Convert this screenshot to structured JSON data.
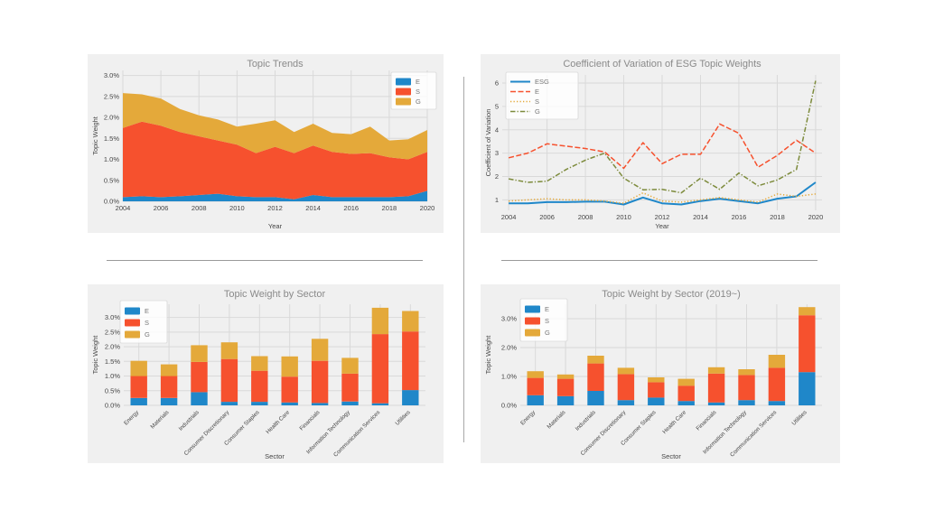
{
  "style": {
    "panel_background": "#f0f0f0",
    "grid_color": "#d9d9d9",
    "tick_color": "#454545",
    "title_color": "#8a8a8a",
    "legend_text_color": "#777777",
    "colors": {
      "e_blue": "#1f87c9",
      "s_red": "#f6512e",
      "g_gold": "#e4a93a",
      "g_olive": "#7d8b3c"
    },
    "dashes": {
      "solid": "",
      "dashed": "6,2.5",
      "dotted": "1.3,2.2",
      "dashdot": "5.5,2,1.3,2"
    }
  },
  "chart_data": [
    {
      "type": "stacked_area",
      "title": "Topic Trends",
      "xlabel": "Year",
      "ylabel": "Topic Weight",
      "x": [
        2004,
        2005,
        2006,
        2007,
        2008,
        2009,
        2010,
        2011,
        2012,
        2013,
        2014,
        2015,
        2016,
        2017,
        2018,
        2019,
        2020
      ],
      "xticks": [
        2004,
        2006,
        2008,
        2010,
        2012,
        2014,
        2016,
        2018,
        2020
      ],
      "ylim": [
        0,
        3.12
      ],
      "ytick_values": [
        0,
        0.5,
        1.0,
        1.5,
        2.0,
        2.5,
        3.0
      ],
      "ytick_labels": [
        "0.0%",
        "0.5%",
        "1.0%",
        "1.5%",
        "2.0%",
        "2.5%",
        "3.0%"
      ],
      "legend_position": "top-right",
      "grid": true,
      "series": [
        {
          "name": "E",
          "color": "#1f87c9",
          "values": [
            0.1,
            0.12,
            0.1,
            0.12,
            0.15,
            0.18,
            0.12,
            0.1,
            0.1,
            0.05,
            0.15,
            0.1,
            0.1,
            0.1,
            0.1,
            0.12,
            0.25
          ]
        },
        {
          "name": "S",
          "color": "#f6512e",
          "values": [
            1.65,
            1.78,
            1.7,
            1.53,
            1.4,
            1.27,
            1.23,
            1.05,
            1.2,
            1.1,
            1.18,
            1.08,
            1.03,
            1.05,
            0.95,
            0.88,
            0.93
          ]
        },
        {
          "name": "G",
          "color": "#e4a93a",
          "values": [
            0.83,
            0.65,
            0.65,
            0.55,
            0.5,
            0.5,
            0.43,
            0.7,
            0.63,
            0.5,
            0.52,
            0.45,
            0.47,
            0.63,
            0.4,
            0.48,
            0.52
          ]
        }
      ]
    },
    {
      "type": "line",
      "title": "Coefficient of Variation of ESG Topic Weights",
      "xlabel": "Year",
      "ylabel": "Coefficient of Variation",
      "x": [
        2004,
        2005,
        2006,
        2007,
        2008,
        2009,
        2010,
        2011,
        2012,
        2013,
        2014,
        2015,
        2016,
        2017,
        2018,
        2019,
        2020
      ],
      "xticks": [
        2004,
        2006,
        2008,
        2010,
        2012,
        2014,
        2016,
        2018,
        2020
      ],
      "ylim": [
        0.55,
        6.35
      ],
      "ytick_values": [
        1,
        2,
        3,
        4,
        5,
        6
      ],
      "ytick_labels": [
        "1",
        "2",
        "3",
        "4",
        "5",
        "6"
      ],
      "legend_position": "top-left",
      "grid": true,
      "series": [
        {
          "name": "ESG",
          "color": "#1f87c9",
          "dash": "solid",
          "width": 2,
          "values": [
            0.85,
            0.85,
            0.9,
            0.9,
            0.92,
            0.92,
            0.8,
            1.1,
            0.85,
            0.8,
            0.95,
            1.05,
            0.95,
            0.85,
            1.05,
            1.15,
            1.75
          ]
        },
        {
          "name": "E",
          "color": "#f6512e",
          "dash": "dashed",
          "width": 1.5,
          "values": [
            2.8,
            3.0,
            3.4,
            3.3,
            3.2,
            3.05,
            2.35,
            3.45,
            2.55,
            2.95,
            2.95,
            4.25,
            3.85,
            2.4,
            2.9,
            3.55,
            3.0
          ]
        },
        {
          "name": "S",
          "color": "#e4a93a",
          "dash": "dotted",
          "width": 1.5,
          "values": [
            0.95,
            1.0,
            1.05,
            1.0,
            1.0,
            0.95,
            0.85,
            1.3,
            0.95,
            0.9,
            1.0,
            1.1,
            1.0,
            0.9,
            1.25,
            1.15,
            1.25
          ]
        },
        {
          "name": "G",
          "color": "#7d8b3c",
          "dash": "dashdot",
          "width": 1.5,
          "values": [
            1.9,
            1.75,
            1.8,
            2.3,
            2.7,
            3.0,
            1.93,
            1.43,
            1.45,
            1.3,
            1.93,
            1.45,
            2.15,
            1.6,
            1.85,
            2.3,
            6.1
          ]
        }
      ]
    },
    {
      "type": "stacked_bar",
      "title": "Topic Weight by Sector",
      "xlabel": "Sector",
      "ylabel": "Topic Weight",
      "categories": [
        "Energy",
        "Materials",
        "Industrials",
        "Consumer Discretionary",
        "Consumer Staples",
        "Health Care",
        "Financials",
        "Information Technology",
        "Communication Services",
        "Utilities"
      ],
      "ylim": [
        0,
        3.45
      ],
      "ytick_values": [
        0,
        0.5,
        1.0,
        1.5,
        2.0,
        2.5,
        3.0
      ],
      "ytick_labels": [
        "0.0%",
        "0.5%",
        "1.0%",
        "1.5%",
        "2.0%",
        "2.5%",
        "3.0%"
      ],
      "legend_position": "top-left",
      "grid": true,
      "series": [
        {
          "name": "E",
          "color": "#1f87c9",
          "values": [
            0.25,
            0.25,
            0.45,
            0.12,
            0.12,
            0.1,
            0.08,
            0.13,
            0.07,
            0.52
          ]
        },
        {
          "name": "S",
          "color": "#f6512e",
          "values": [
            0.75,
            0.75,
            1.03,
            1.46,
            1.06,
            0.88,
            1.44,
            0.95,
            2.36,
            2.0
          ]
        },
        {
          "name": "G",
          "color": "#e4a93a",
          "values": [
            0.52,
            0.4,
            0.57,
            0.57,
            0.5,
            0.69,
            0.75,
            0.54,
            0.9,
            0.7
          ]
        }
      ]
    },
    {
      "type": "stacked_bar",
      "title": "Topic Weight by Sector (2019~)",
      "xlabel": "Sector",
      "ylabel": "Topic Weight",
      "categories": [
        "Energy",
        "Materials",
        "Industrials",
        "Consumer Discretionary",
        "Consumer Staples",
        "Health Care",
        "Financials",
        "Information Technology",
        "Communication Services",
        "Utilities"
      ],
      "ylim": [
        0,
        3.5
      ],
      "ytick_values": [
        0,
        1.0,
        2.0,
        3.0
      ],
      "ytick_labels": [
        "0.0%",
        "1.0%",
        "2.0%",
        "3.0%"
      ],
      "legend_position": "top-left",
      "grid": true,
      "series": [
        {
          "name": "E",
          "color": "#1f87c9",
          "values": [
            0.35,
            0.32,
            0.5,
            0.18,
            0.27,
            0.15,
            0.1,
            0.18,
            0.15,
            1.15
          ]
        },
        {
          "name": "S",
          "color": "#f6512e",
          "values": [
            0.6,
            0.6,
            0.95,
            0.9,
            0.53,
            0.53,
            1.0,
            0.87,
            1.15,
            1.97
          ]
        },
        {
          "name": "G",
          "color": "#e4a93a",
          "values": [
            0.23,
            0.15,
            0.27,
            0.22,
            0.17,
            0.24,
            0.22,
            0.2,
            0.45,
            0.28
          ]
        }
      ]
    }
  ]
}
